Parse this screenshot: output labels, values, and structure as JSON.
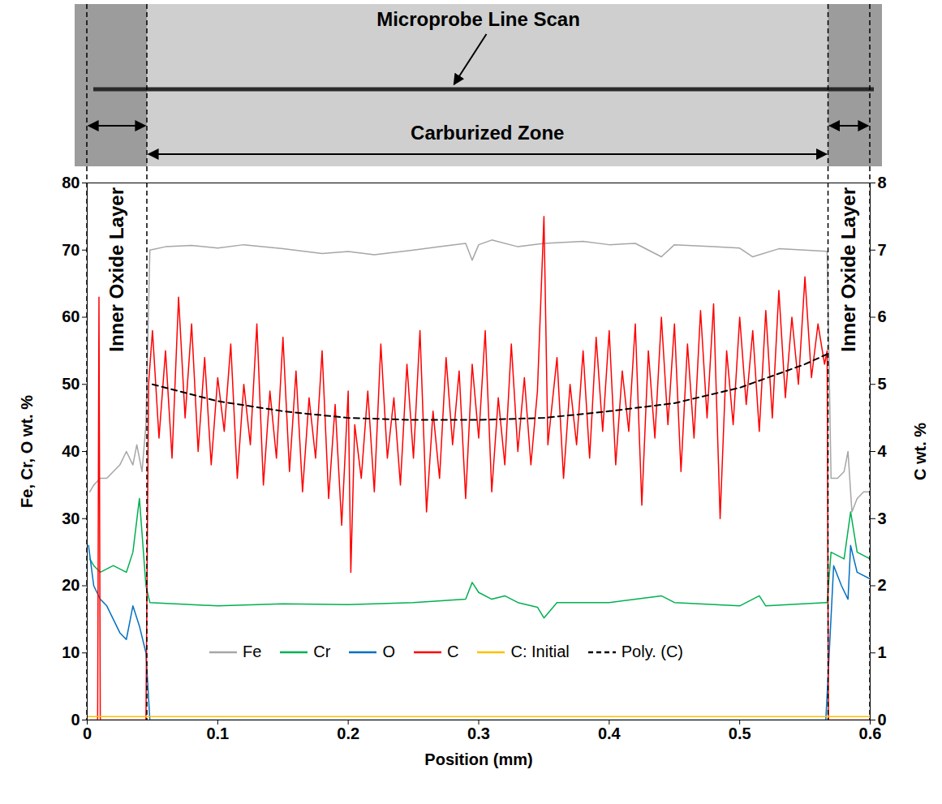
{
  "chart_data": {
    "type": "line",
    "xlabel": "Position (mm)",
    "ylabel": "Fe, Cr, O wt. %",
    "y2label": "C wt. %",
    "xlim": [
      0,
      0.6
    ],
    "xticks": [
      0,
      0.1,
      0.2,
      0.3,
      0.4,
      0.5,
      0.6
    ],
    "ylim": [
      0,
      80
    ],
    "yticks": [
      0,
      10,
      20,
      30,
      40,
      50,
      60,
      70,
      80
    ],
    "y2lim": [
      0,
      8
    ],
    "y2ticks": [
      0,
      1,
      2,
      3,
      4,
      5,
      6,
      7,
      8
    ],
    "grid": false,
    "legend": "bottom",
    "annotations": [
      {
        "text": "Inner Oxide Layer",
        "x": [
          0,
          0.046
        ]
      },
      {
        "text": "Carburized Zone",
        "x": [
          0.046,
          0.568
        ]
      },
      {
        "text": "Inner Oxide Layer",
        "x": [
          0.568,
          0.6
        ]
      },
      {
        "text": "Microprobe Line Scan"
      }
    ],
    "series": [
      {
        "name": "Fe",
        "color": "#a6a6a6",
        "x": [
          0.002,
          0.005,
          0.01,
          0.015,
          0.02,
          0.025,
          0.03,
          0.035,
          0.038,
          0.042,
          0.045,
          0.048,
          0.06,
          0.08,
          0.1,
          0.12,
          0.15,
          0.18,
          0.2,
          0.22,
          0.25,
          0.27,
          0.29,
          0.295,
          0.3,
          0.31,
          0.33,
          0.35,
          0.38,
          0.4,
          0.42,
          0.44,
          0.45,
          0.48,
          0.5,
          0.51,
          0.53,
          0.55,
          0.567,
          0.57,
          0.575,
          0.58,
          0.583,
          0.586,
          0.59,
          0.595,
          0.6
        ],
        "values": [
          34,
          35,
          36,
          36,
          37,
          38,
          40,
          38,
          41,
          37,
          44,
          70,
          70.5,
          70.7,
          70.3,
          70.8,
          70.2,
          69.5,
          69.8,
          69.3,
          70,
          70.5,
          71,
          68.5,
          70.8,
          71.5,
          70.5,
          71,
          71.3,
          70.8,
          71,
          69,
          70.8,
          70.5,
          70.3,
          69,
          70.2,
          70,
          69.8,
          36,
          36,
          37,
          40,
          31,
          33,
          34,
          34
        ]
      },
      {
        "name": "Cr",
        "color": "#00b050",
        "x": [
          0.002,
          0.005,
          0.01,
          0.02,
          0.03,
          0.035,
          0.04,
          0.045,
          0.048,
          0.1,
          0.15,
          0.2,
          0.25,
          0.29,
          0.295,
          0.3,
          0.31,
          0.32,
          0.33,
          0.345,
          0.35,
          0.36,
          0.4,
          0.44,
          0.45,
          0.5,
          0.515,
          0.52,
          0.567,
          0.57,
          0.58,
          0.585,
          0.59,
          0.6
        ],
        "values": [
          24,
          23,
          22,
          23,
          22,
          25,
          33,
          20,
          17.5,
          17,
          17.3,
          17.2,
          17.5,
          18,
          20.5,
          19,
          18,
          18.5,
          17.5,
          16.8,
          15.2,
          17.5,
          17.5,
          18.5,
          17.5,
          17,
          18.5,
          17,
          17.5,
          25,
          24,
          31,
          25,
          24
        ]
      },
      {
        "name": "O",
        "color": "#0070c0",
        "x": [
          0.001,
          0.005,
          0.01,
          0.015,
          0.02,
          0.025,
          0.03,
          0.035,
          0.04,
          0.045,
          0.048,
          0.2,
          0.4,
          0.566,
          0.572,
          0.578,
          0.583,
          0.585,
          0.59,
          0.6
        ],
        "values": [
          26,
          20,
          18,
          17,
          15,
          13,
          12,
          17,
          14,
          10,
          0,
          0,
          0,
          0,
          23,
          20,
          18,
          26,
          22,
          21
        ]
      },
      {
        "name": "C",
        "color": "#ff0000",
        "axis": "y2",
        "x": [
          0.002,
          0.008,
          0.009,
          0.01,
          0.045,
          0.047,
          0.05,
          0.055,
          0.06,
          0.065,
          0.07,
          0.075,
          0.08,
          0.085,
          0.09,
          0.095,
          0.1,
          0.105,
          0.11,
          0.115,
          0.12,
          0.125,
          0.13,
          0.135,
          0.14,
          0.145,
          0.15,
          0.155,
          0.16,
          0.165,
          0.17,
          0.175,
          0.18,
          0.185,
          0.19,
          0.195,
          0.2,
          0.202,
          0.205,
          0.21,
          0.215,
          0.22,
          0.225,
          0.23,
          0.235,
          0.24,
          0.245,
          0.25,
          0.255,
          0.26,
          0.265,
          0.27,
          0.275,
          0.28,
          0.285,
          0.29,
          0.295,
          0.3,
          0.305,
          0.31,
          0.315,
          0.32,
          0.325,
          0.33,
          0.335,
          0.34,
          0.345,
          0.35,
          0.353,
          0.36,
          0.365,
          0.37,
          0.375,
          0.38,
          0.385,
          0.39,
          0.395,
          0.4,
          0.405,
          0.41,
          0.415,
          0.42,
          0.425,
          0.43,
          0.435,
          0.44,
          0.445,
          0.45,
          0.455,
          0.46,
          0.465,
          0.47,
          0.475,
          0.48,
          0.485,
          0.49,
          0.495,
          0.5,
          0.505,
          0.51,
          0.515,
          0.52,
          0.525,
          0.53,
          0.535,
          0.54,
          0.545,
          0.55,
          0.555,
          0.56,
          0.565,
          0.567,
          0.568,
          0.6
        ],
        "values": [
          0,
          0,
          6.3,
          0,
          0,
          5.0,
          5.8,
          4.2,
          5.5,
          3.9,
          6.3,
          4.5,
          5.9,
          4.0,
          5.4,
          3.8,
          5.1,
          4.3,
          5.6,
          3.6,
          5.0,
          4.1,
          5.9,
          3.5,
          4.9,
          3.9,
          5.7,
          3.7,
          5.2,
          3.4,
          4.8,
          3.9,
          5.5,
          3.3,
          4.7,
          2.9,
          4.9,
          2.2,
          4.4,
          3.6,
          4.9,
          3.4,
          5.6,
          3.9,
          4.8,
          3.5,
          5.3,
          3.9,
          5.8,
          3.1,
          4.6,
          3.6,
          5.4,
          4.1,
          5.2,
          3.3,
          5.3,
          4.2,
          5.8,
          3.4,
          4.8,
          3.8,
          5.6,
          4.0,
          5.1,
          3.8,
          4.9,
          7.5,
          4.1,
          5.4,
          3.6,
          5.0,
          4.1,
          5.5,
          3.9,
          5.7,
          4.3,
          5.8,
          3.8,
          5.2,
          4.3,
          5.9,
          3.2,
          5.5,
          4.2,
          6.0,
          4.4,
          5.9,
          3.7,
          5.6,
          4.2,
          6.1,
          4.5,
          6.2,
          3.0,
          5.5,
          4.4,
          6.0,
          4.7,
          5.8,
          4.3,
          6.1,
          4.5,
          6.4,
          4.8,
          6.0,
          5.0,
          6.6,
          5.1,
          5.9,
          5.3,
          5.5,
          0,
          0
        ]
      },
      {
        "name": "C: Initial",
        "color": "#ffc000",
        "axis": "y2",
        "x": [
          0,
          0.6
        ],
        "values": [
          0.05,
          0.05
        ]
      },
      {
        "name": "Poly. (C)",
        "color": "#000000",
        "axis": "y2",
        "line_style": "dashed",
        "x": [
          0.05,
          0.1,
          0.15,
          0.2,
          0.25,
          0.3,
          0.35,
          0.4,
          0.45,
          0.5,
          0.55,
          0.567
        ],
        "values": [
          5.0,
          4.75,
          4.6,
          4.5,
          4.47,
          4.47,
          4.5,
          4.6,
          4.72,
          4.95,
          5.3,
          5.45
        ]
      }
    ]
  }
}
